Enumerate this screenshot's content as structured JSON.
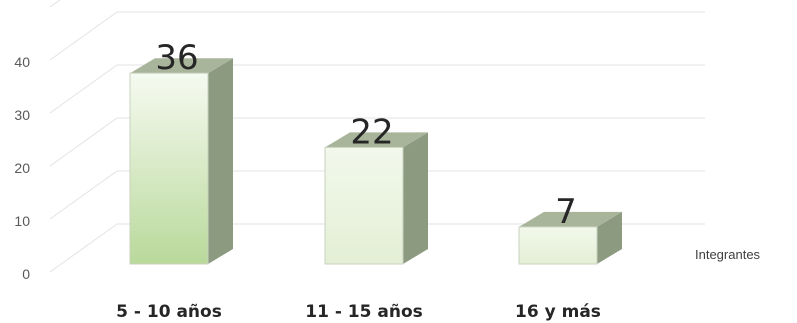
{
  "chart_data": {
    "type": "bar",
    "categories": [
      "5 - 10 años",
      "11 - 15 años",
      "16 y más"
    ],
    "series": [
      {
        "name": "Integrantes",
        "values": [
          36,
          22,
          7
        ]
      }
    ],
    "data_labels": [
      "36",
      "22",
      "7"
    ],
    "y_ticks": [
      "0",
      "10",
      "20",
      "30",
      "40"
    ],
    "ylim": [
      0,
      50
    ],
    "grid": true,
    "three_d": true,
    "colors": {
      "front_top": "#f6faf1",
      "front_bottom_first": "#b9d99b",
      "front_bottom": "#e3efd5",
      "side": "#8c9a80",
      "top": "#a8b59b",
      "edge": "#c8d2bf",
      "grid": "#e3e3e3"
    }
  }
}
